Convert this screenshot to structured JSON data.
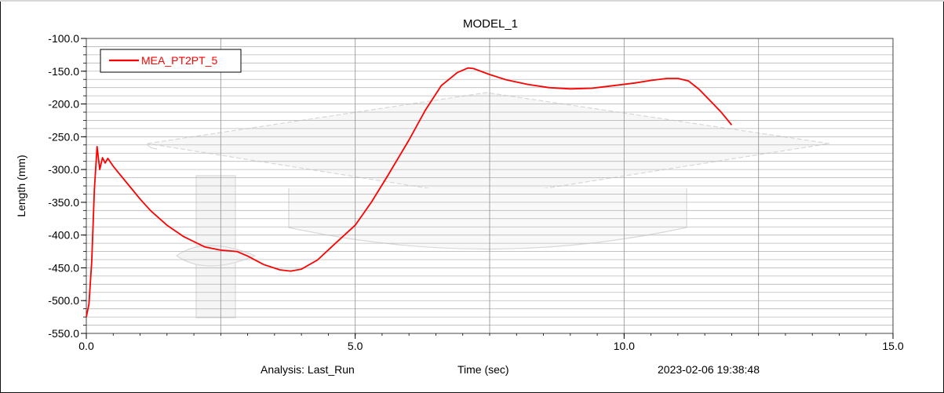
{
  "chart_data": {
    "type": "line",
    "title": "MODEL_1",
    "xlabel": "Time (sec)",
    "ylabel": "Length (mm)",
    "xlim": [
      0.0,
      15.0
    ],
    "ylim": [
      -550.0,
      -100.0
    ],
    "x_ticks": [
      "0.0",
      "5.0",
      "10.0",
      "15.0"
    ],
    "y_ticks": [
      "-100.0",
      "-150.0",
      "-200.0",
      "-250.0",
      "-300.0",
      "-350.0",
      "-400.0",
      "-450.0",
      "-500.0",
      "-550.0"
    ],
    "grid": true,
    "legend_position": "top-left",
    "series": [
      {
        "name": "MEA_PT2PT_5",
        "color": "#ff0000",
        "x": [
          0.0,
          0.05,
          0.1,
          0.15,
          0.2,
          0.25,
          0.3,
          0.35,
          0.4,
          0.5,
          0.6,
          0.8,
          1.0,
          1.2,
          1.5,
          1.8,
          2.0,
          2.2,
          2.5,
          2.8,
          3.0,
          3.3,
          3.6,
          3.8,
          4.0,
          4.3,
          4.6,
          5.0,
          5.3,
          5.6,
          6.0,
          6.3,
          6.6,
          6.9,
          7.1,
          7.2,
          7.5,
          7.8,
          8.2,
          8.6,
          9.0,
          9.4,
          9.8,
          10.2,
          10.5,
          10.8,
          11.0,
          11.2,
          11.4,
          11.6,
          11.8,
          12.0
        ],
        "y": [
          -525,
          -505,
          -440,
          -330,
          -265,
          -300,
          -282,
          -290,
          -283,
          -295,
          -305,
          -325,
          -345,
          -363,
          -385,
          -402,
          -410,
          -418,
          -423,
          -425,
          -432,
          -445,
          -453,
          -455,
          -452,
          -438,
          -415,
          -385,
          -350,
          -310,
          -255,
          -210,
          -172,
          -152,
          -145,
          -146,
          -155,
          -163,
          -170,
          -175,
          -177,
          -176,
          -172,
          -168,
          -164,
          -161,
          -161,
          -165,
          -178,
          -195,
          -212,
          -232
        ]
      }
    ]
  },
  "footer": {
    "analysis": "Analysis:  Last_Run",
    "date": "2023-02-06 19:38:48"
  },
  "colors": {
    "line": "#ff0000",
    "grid": "#9a9a9a",
    "watermark": "#cfcfcf"
  }
}
